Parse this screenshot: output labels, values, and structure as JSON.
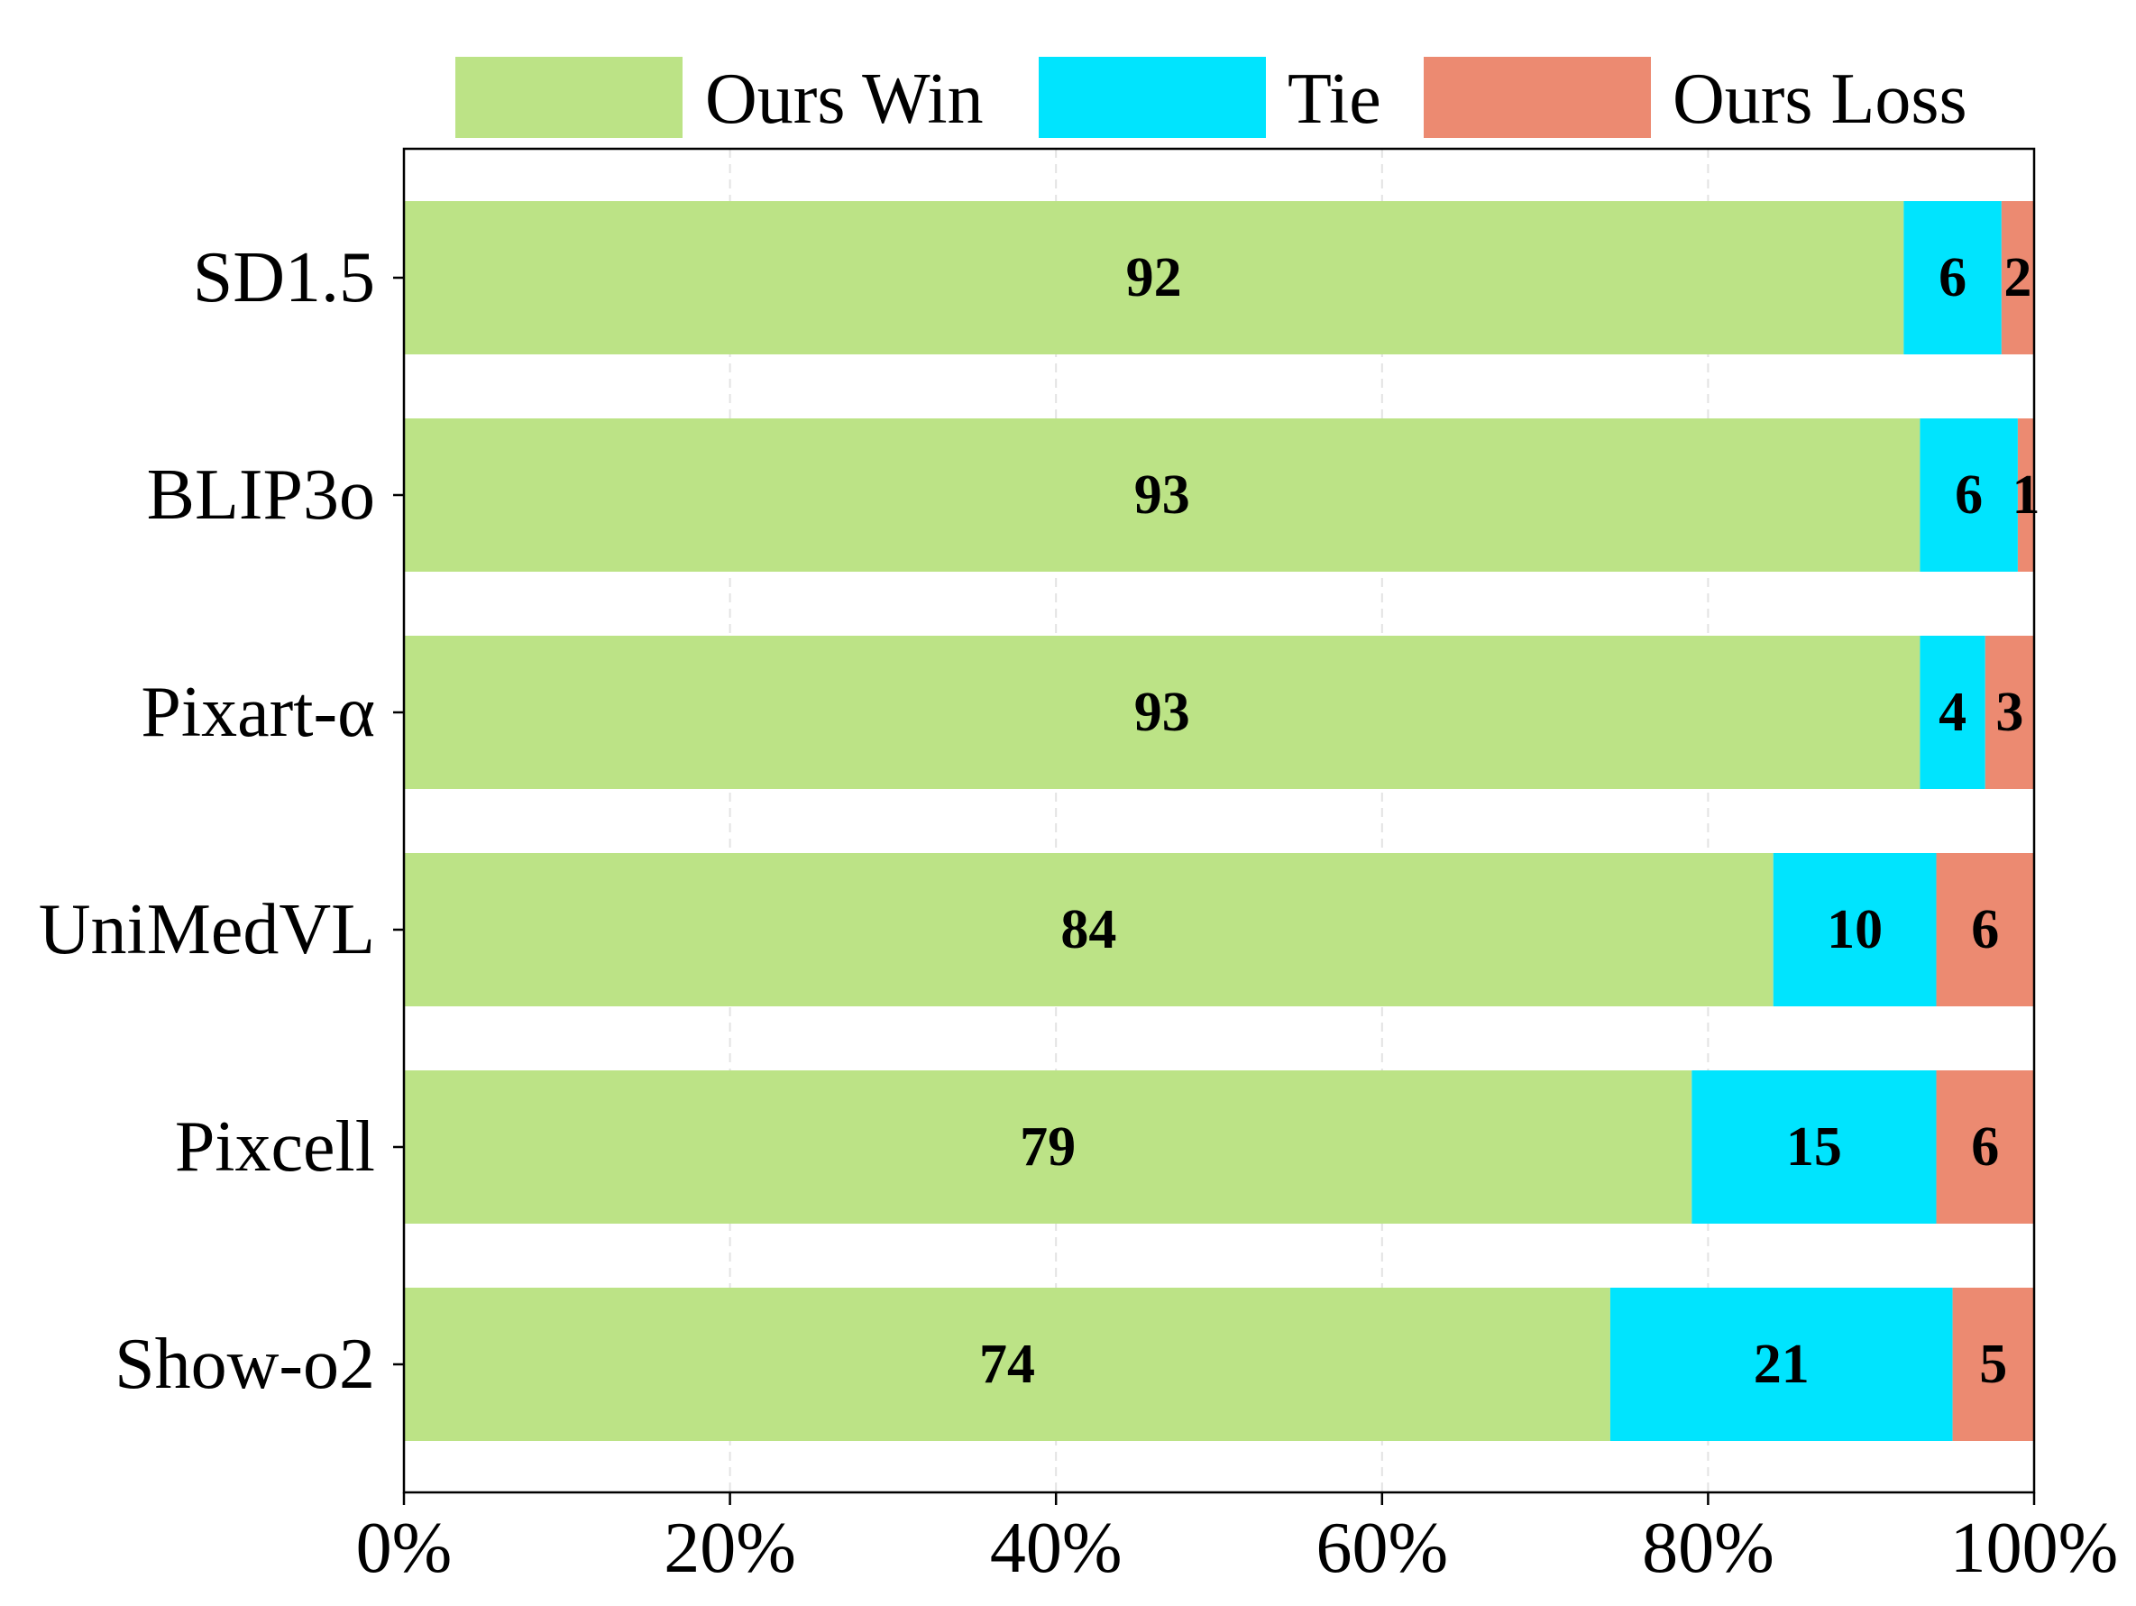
{
  "chart_data": {
    "type": "bar",
    "orientation": "horizontal",
    "stacked": true,
    "title": "",
    "xlabel": "",
    "ylabel": "",
    "categories": [
      "SD1.5",
      "BLIP3o",
      "Pixart-α",
      "UniMedVL",
      "Pixcell",
      "Show-o2"
    ],
    "series": [
      {
        "name": "Ours Win",
        "color": "#bce386",
        "values": [
          92,
          93,
          93,
          84,
          79,
          74
        ]
      },
      {
        "name": "Tie",
        "color": "#00e4fe",
        "values": [
          6,
          6,
          4,
          10,
          15,
          21
        ]
      },
      {
        "name": "Ours Loss",
        "color": "#ec8a71",
        "values": [
          2,
          1,
          3,
          6,
          6,
          5
        ]
      }
    ],
    "xlim": [
      0,
      100
    ],
    "xticks": [
      0,
      20,
      40,
      60,
      80,
      100
    ],
    "xtick_labels": [
      "0%",
      "20%",
      "40%",
      "60%",
      "80%",
      "100%"
    ],
    "grid": "vertical-dashed",
    "legend_position": "top"
  }
}
